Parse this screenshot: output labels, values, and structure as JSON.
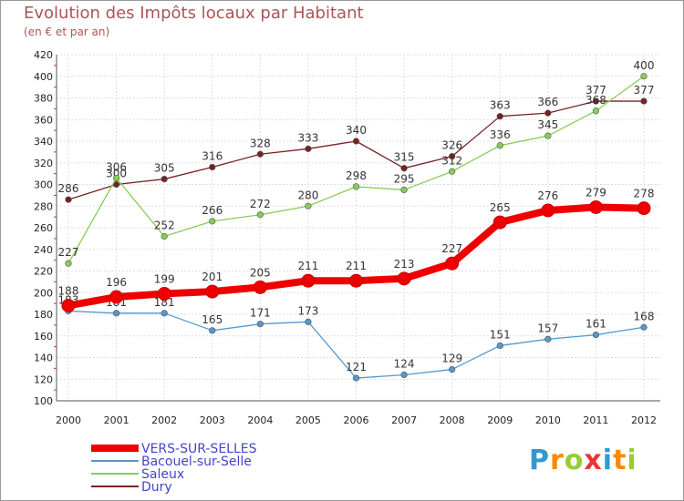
{
  "title": "Evolution des Impôts locaux par Habitant",
  "subtitle": "(en € et par an)",
  "logo_text": "Proxiti",
  "chart_data": {
    "type": "line",
    "title": "Evolution des Impôts locaux par Habitant",
    "subtitle": "(en € et par an)",
    "xlabel": "",
    "ylabel": "",
    "ylim": [
      100,
      420
    ],
    "yticks": [
      100,
      120,
      140,
      160,
      180,
      200,
      220,
      240,
      260,
      280,
      300,
      320,
      340,
      360,
      380,
      400,
      420
    ],
    "grid": true,
    "legend_position": "bottom-left",
    "x": [
      "2000",
      "2001",
      "2002",
      "2003",
      "2004",
      "2005",
      "2006",
      "2007",
      "2008",
      "2009",
      "2010",
      "2011",
      "2012"
    ],
    "series": [
      {
        "name": "VERS-SUR-SELLES",
        "color": "#ee0000",
        "values": [
          188,
          196,
          199,
          201,
          205,
          211,
          211,
          213,
          227,
          265,
          276,
          279,
          278
        ]
      },
      {
        "name": "Bacouel-sur-Selle",
        "color": "#5599cc",
        "values": [
          183,
          181,
          181,
          165,
          171,
          173,
          121,
          124,
          129,
          151,
          157,
          161,
          168
        ]
      },
      {
        "name": "Saleux",
        "color": "#88cc55",
        "values": [
          227,
          306,
          252,
          266,
          272,
          280,
          298,
          295,
          312,
          336,
          345,
          368,
          400
        ]
      },
      {
        "name": "Dury",
        "color": "#772222",
        "values": [
          286,
          300,
          305,
          316,
          328,
          333,
          340,
          315,
          326,
          363,
          366,
          377,
          377
        ]
      }
    ]
  }
}
